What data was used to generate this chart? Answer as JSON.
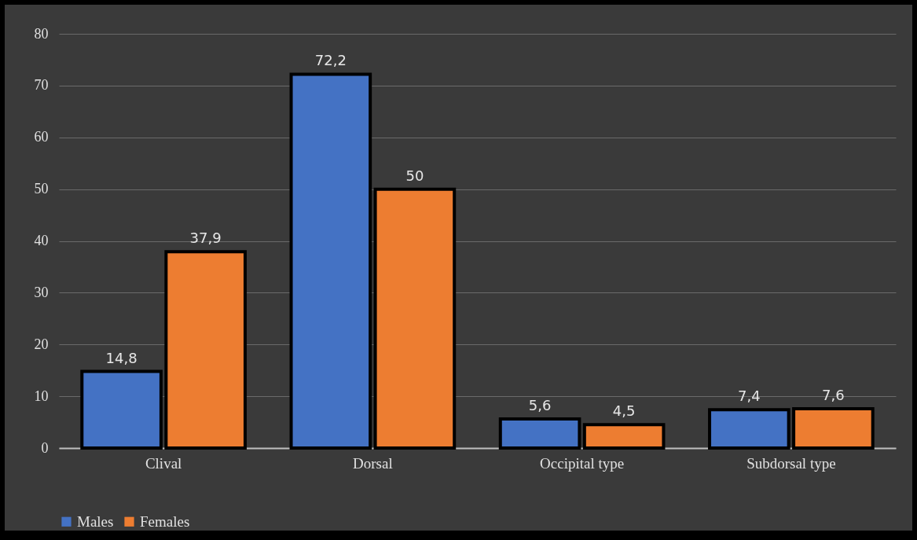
{
  "chart_data": {
    "type": "bar",
    "categories": [
      "Clival",
      "Dorsal",
      "Occipital type",
      "Subdorsal type"
    ],
    "series": [
      {
        "name": "Males",
        "color": "#4472c4",
        "values": [
          14.8,
          72.2,
          5.6,
          7.4
        ],
        "value_labels": [
          "14,8",
          "72,2",
          "5,6",
          "7,4"
        ]
      },
      {
        "name": "Females",
        "color": "#ed7d31",
        "values": [
          37.9,
          50,
          4.5,
          7.6
        ],
        "value_labels": [
          "37,9",
          "50",
          "4,5",
          "7,6"
        ]
      }
    ],
    "ylim": [
      0,
      80
    ],
    "yticks": [
      0,
      10,
      20,
      30,
      40,
      50,
      60,
      70,
      80
    ],
    "grid": "y",
    "legend": "bottom"
  }
}
